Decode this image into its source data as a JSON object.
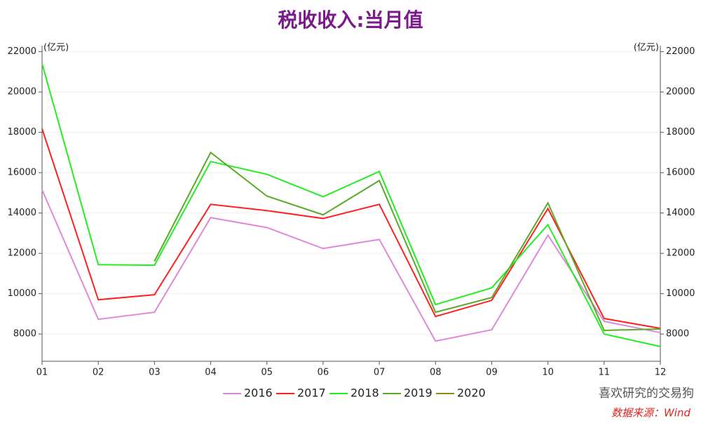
{
  "chart_data": {
    "type": "line",
    "title": "税收收入:当月值",
    "y_label": "(亿元)",
    "y2_label": "(亿元)",
    "categories": [
      "01",
      "02",
      "03",
      "04",
      "05",
      "06",
      "07",
      "08",
      "09",
      "10",
      "11",
      "12"
    ],
    "ylim": [
      6650,
      22300
    ],
    "yticks": [
      8000,
      10000,
      12000,
      14000,
      16000,
      18000,
      20000,
      22000
    ],
    "y2lim": [
      6650,
      22300
    ],
    "y2ticks": [
      8000,
      10000,
      12000,
      14000,
      16000,
      18000,
      20000,
      22000
    ],
    "grid": true,
    "series": [
      {
        "name": "2016",
        "color": "#e088d8",
        "values": [
          15150,
          8730,
          9080,
          13770,
          13280,
          12240,
          12690,
          7650,
          8210,
          12900,
          8630,
          8070
        ]
      },
      {
        "name": "2017",
        "color": "#ff2020",
        "values": [
          18180,
          9700,
          9950,
          14430,
          14120,
          13730,
          14430,
          8870,
          9670,
          14220,
          8770,
          8280
        ]
      },
      {
        "name": "2018",
        "color": "#22ee22",
        "values": [
          21410,
          11440,
          11410,
          16550,
          15920,
          14810,
          16060,
          9460,
          10290,
          13420,
          8000,
          7380
        ]
      },
      {
        "name": "2019",
        "color": "#5aaa2a",
        "values": [
          null,
          null,
          11610,
          17000,
          14840,
          13910,
          15610,
          9080,
          9810,
          14500,
          8180,
          8250
        ]
      },
      {
        "name": "2020",
        "color": "#8a8a1a",
        "values": [
          null,
          null,
          null,
          null,
          null,
          null,
          null,
          null,
          null,
          null,
          null,
          null
        ]
      }
    ],
    "watermark": "喜欢研究的交易狗",
    "source": "数据来源：Wind"
  }
}
